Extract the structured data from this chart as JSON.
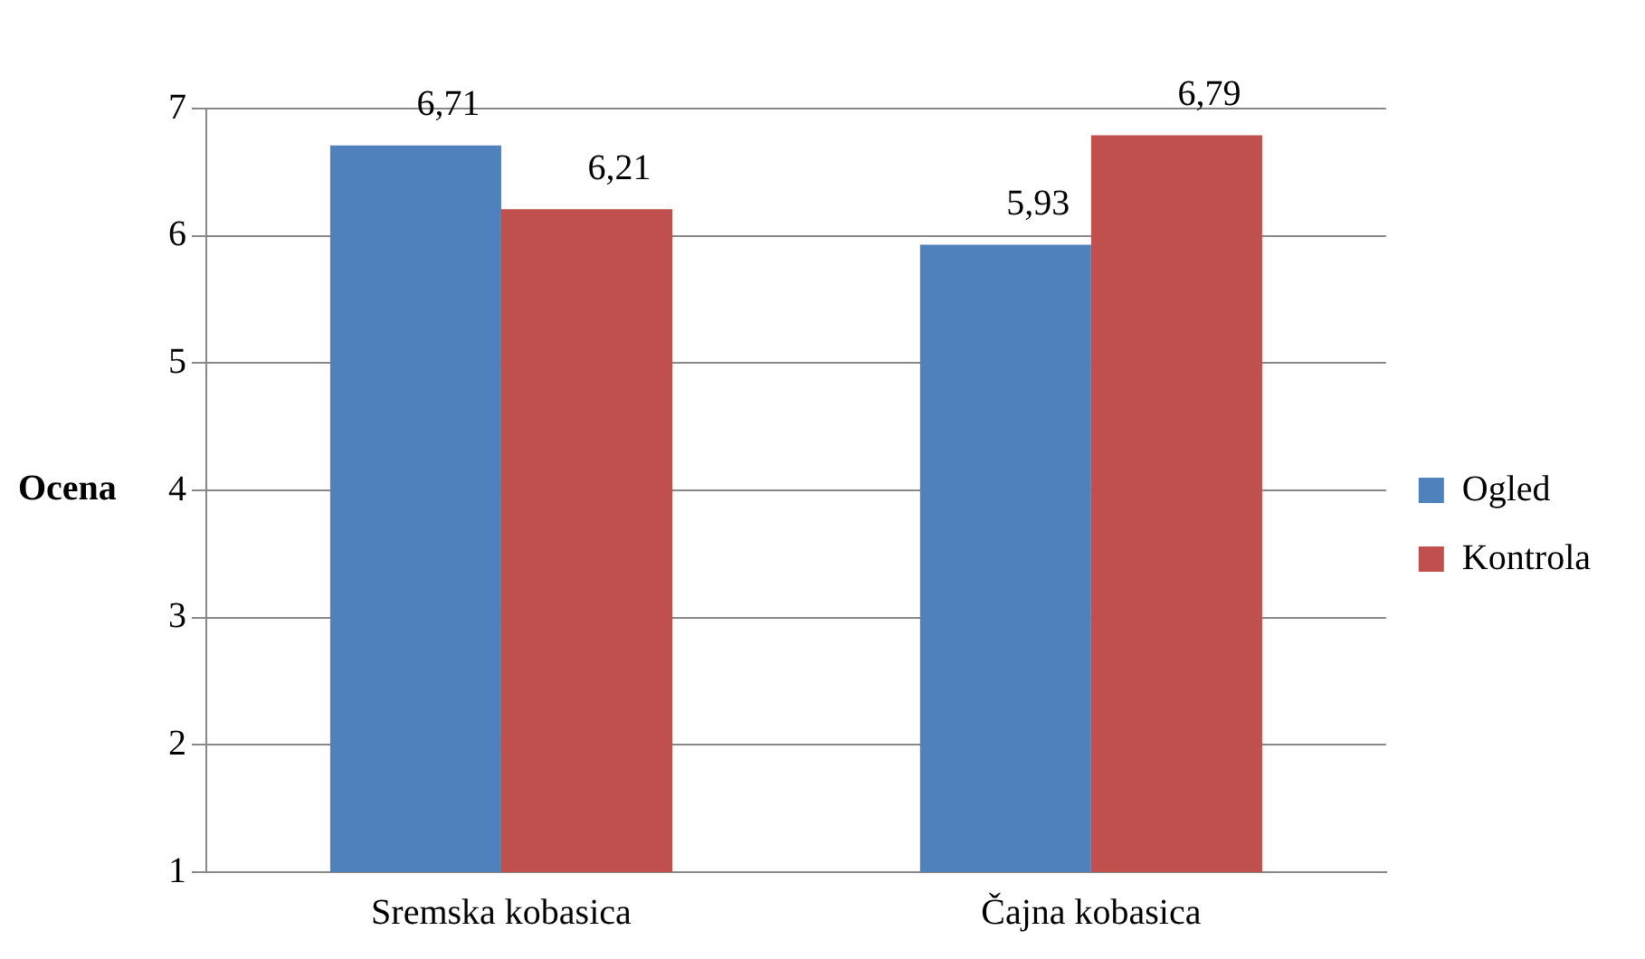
{
  "chart_data": {
    "type": "bar",
    "ylabel": "Ocena",
    "categories": [
      "Sremska kobasica",
      "Čajna kobasica"
    ],
    "series": [
      {
        "name": "Ogled",
        "color": "#4f81bd",
        "values": [
          6.71,
          5.93
        ],
        "value_labels": [
          "6,71",
          "5,93"
        ]
      },
      {
        "name": "Kontrola",
        "color": "#c0504d",
        "values": [
          6.21,
          6.79
        ],
        "value_labels": [
          "6,21",
          "6,79"
        ]
      }
    ],
    "ylim": [
      1,
      7
    ],
    "yticks": [
      1,
      2,
      3,
      4,
      5,
      6,
      7
    ],
    "grid": "y",
    "legend": "right"
  }
}
